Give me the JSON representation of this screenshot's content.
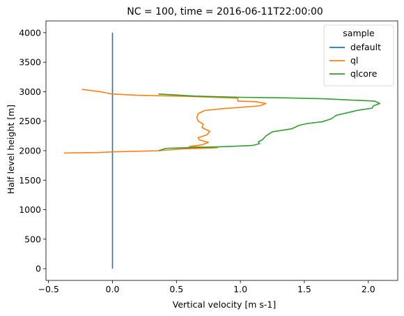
{
  "chart_data": {
    "type": "line",
    "title": "NC = 100, time = 2016-06-11T22:00:00",
    "xlabel": "Vertical velocity [m s-1]",
    "ylabel": "Half level height [m]",
    "xlim": [
      -0.52,
      2.23
    ],
    "ylim": [
      -200,
      4200
    ],
    "xticks": [
      -0.5,
      0.0,
      0.5,
      1.0,
      1.5,
      2.0
    ],
    "xtick_labels": [
      "−0.5",
      "0.0",
      "0.5",
      "1.0",
      "1.5",
      "2.0"
    ],
    "yticks": [
      0,
      500,
      1000,
      1500,
      2000,
      2500,
      3000,
      3500,
      4000
    ],
    "ytick_labels": [
      "0",
      "500",
      "1000",
      "1500",
      "2000",
      "2500",
      "3000",
      "3500",
      "4000"
    ],
    "grid": false,
    "legend": {
      "title": "sample",
      "position": "top-right"
    },
    "series": [
      {
        "name": "default",
        "color": "#1f77b4",
        "points": [
          [
            0.0,
            0
          ],
          [
            0.0,
            4000
          ]
        ]
      },
      {
        "name": "ql",
        "color": "#ff7f0e",
        "points": [
          [
            -0.38,
            1960
          ],
          [
            -0.1,
            1970
          ],
          [
            0.0,
            1980
          ],
          [
            0.2,
            1990
          ],
          [
            0.36,
            2000
          ],
          [
            0.55,
            2030
          ],
          [
            0.82,
            2050
          ],
          [
            0.6,
            2070
          ],
          [
            0.7,
            2100
          ],
          [
            0.75,
            2140
          ],
          [
            0.68,
            2180
          ],
          [
            0.67,
            2220
          ],
          [
            0.74,
            2270
          ],
          [
            0.76,
            2330
          ],
          [
            0.7,
            2390
          ],
          [
            0.71,
            2450
          ],
          [
            0.67,
            2500
          ],
          [
            0.66,
            2560
          ],
          [
            0.67,
            2630
          ],
          [
            0.72,
            2680
          ],
          [
            0.85,
            2710
          ],
          [
            1.15,
            2760
          ],
          [
            1.2,
            2800
          ],
          [
            1.12,
            2830
          ],
          [
            0.98,
            2840
          ],
          [
            0.98,
            2890
          ],
          [
            0.6,
            2920
          ],
          [
            0.2,
            2940
          ],
          [
            0.0,
            2960
          ],
          [
            -0.05,
            2980
          ],
          [
            -0.1,
            3000
          ],
          [
            -0.24,
            3040
          ]
        ]
      },
      {
        "name": "qlcore",
        "color": "#2ca02c",
        "points": [
          [
            0.36,
            2000
          ],
          [
            0.42,
            2040
          ],
          [
            0.9,
            2070
          ],
          [
            1.1,
            2090
          ],
          [
            1.15,
            2120
          ],
          [
            1.14,
            2150
          ],
          [
            1.17,
            2180
          ],
          [
            1.2,
            2250
          ],
          [
            1.25,
            2320
          ],
          [
            1.4,
            2370
          ],
          [
            1.46,
            2430
          ],
          [
            1.52,
            2460
          ],
          [
            1.64,
            2490
          ],
          [
            1.71,
            2540
          ],
          [
            1.75,
            2600
          ],
          [
            1.85,
            2650
          ],
          [
            1.93,
            2690
          ],
          [
            2.03,
            2720
          ],
          [
            2.04,
            2760
          ],
          [
            2.09,
            2800
          ],
          [
            2.05,
            2840
          ],
          [
            1.65,
            2880
          ],
          [
            1.35,
            2895
          ],
          [
            1.0,
            2905
          ],
          [
            0.65,
            2925
          ],
          [
            0.36,
            2960
          ]
        ]
      }
    ]
  }
}
